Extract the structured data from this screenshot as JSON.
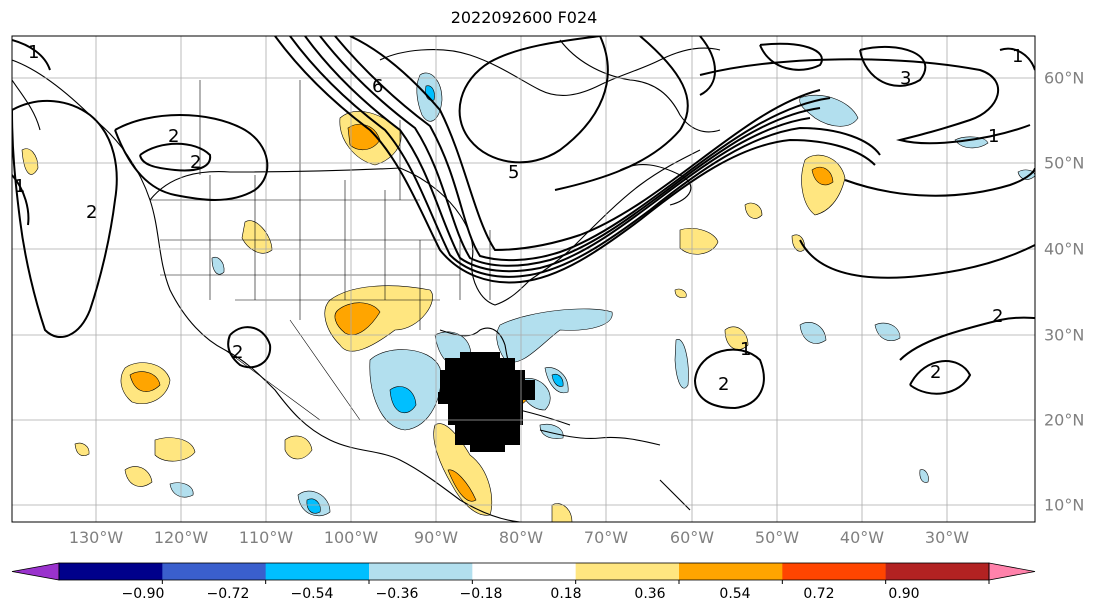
{
  "title": "2022092600 F024",
  "lon_labels": [
    "130°W",
    "120°W",
    "110°W",
    "100°W",
    "90°W",
    "80°W",
    "70°W",
    "60°W",
    "50°W",
    "40°W",
    "30°W"
  ],
  "lat_labels": [
    "60°N",
    "50°N",
    "40°N",
    "30°N",
    "20°N",
    "10°N"
  ],
  "colorbar": {
    "tick_labels": [
      "−0.90",
      "−0.72",
      "−0.54",
      "−0.36",
      "−0.18",
      "0.18",
      "0.36",
      "0.54",
      "0.72",
      "0.90"
    ],
    "colors": [
      "#9a32cd",
      "#00008b",
      "#3a5fcd",
      "#00bfff",
      "#b2dfee",
      "#ffffff",
      "#ffe680",
      "#ffa500",
      "#ff4500",
      "#b22222",
      "#ff82ab"
    ]
  },
  "contour_labels": [
    "1",
    "2",
    "2",
    "2",
    "2",
    "3",
    "5",
    "6",
    "1",
    "1",
    "2",
    "2",
    "2",
    "1",
    "1"
  ]
}
